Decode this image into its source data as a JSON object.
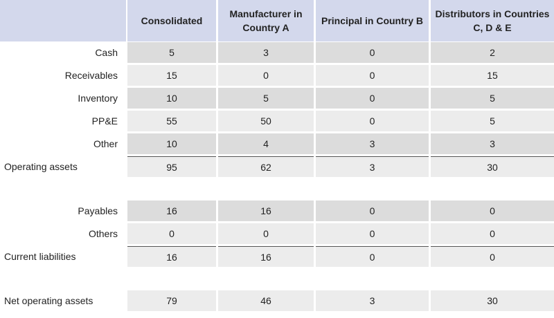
{
  "columns": [
    "Consolidated",
    "Manufacturer in Country A",
    "Principal in Country B",
    "Distributors in Countries C, D & E"
  ],
  "asset_rows": [
    {
      "label": "Cash",
      "values": [
        "5",
        "3",
        "0",
        "2"
      ]
    },
    {
      "label": "Receivables",
      "values": [
        "15",
        "0",
        "0",
        "15"
      ]
    },
    {
      "label": "Inventory",
      "values": [
        "10",
        "5",
        "0",
        "5"
      ]
    },
    {
      "label": "PP&E",
      "values": [
        "55",
        "50",
        "0",
        "5"
      ]
    },
    {
      "label": "Other",
      "values": [
        "10",
        "4",
        "3",
        "3"
      ]
    }
  ],
  "operating_assets": {
    "label": "Operating assets",
    "values": [
      "95",
      "62",
      "3",
      "30"
    ]
  },
  "liability_rows": [
    {
      "label": "Payables",
      "values": [
        "16",
        "16",
        "0",
        "0"
      ]
    },
    {
      "label": "Others",
      "values": [
        "0",
        "0",
        "0",
        "0"
      ]
    }
  ],
  "current_liabilities": {
    "label": "Current liabilities",
    "values": [
      "16",
      "16",
      "0",
      "0"
    ]
  },
  "net_operating_assets": {
    "label": "Net operating assets",
    "values": [
      "79",
      "46",
      "3",
      "30"
    ]
  }
}
